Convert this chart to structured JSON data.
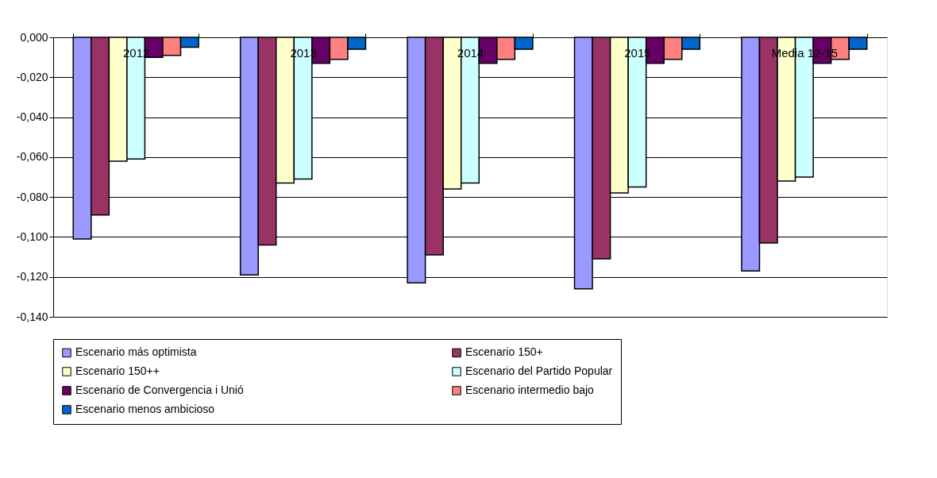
{
  "chart_data": {
    "type": "bar",
    "categories": [
      "2012",
      "2013",
      "2014",
      "2015",
      "Media 12-15"
    ],
    "series": [
      {
        "name": "Escenario más optimista",
        "color": "#9999ff",
        "values": [
          -0.101,
          -0.119,
          -0.123,
          -0.126,
          -0.117
        ]
      },
      {
        "name": "Escenario 150+",
        "color": "#993366",
        "values": [
          -0.089,
          -0.104,
          -0.109,
          -0.111,
          -0.103
        ]
      },
      {
        "name": "Escenario 150++",
        "color": "#ffffcc",
        "values": [
          -0.062,
          -0.073,
          -0.076,
          -0.078,
          -0.072
        ]
      },
      {
        "name": "Escenario del Partido Popular",
        "color": "#ccffff",
        "values": [
          -0.061,
          -0.071,
          -0.073,
          -0.075,
          -0.07
        ]
      },
      {
        "name": "Escenario de Convergencia i Unió",
        "color": "#660066",
        "values": [
          -0.01,
          -0.013,
          -0.013,
          -0.013,
          -0.013
        ]
      },
      {
        "name": "Escenario intermedio bajo",
        "color": "#ff8080",
        "values": [
          -0.009,
          -0.011,
          -0.011,
          -0.011,
          -0.011
        ]
      },
      {
        "name": "Escenario menos ambicioso",
        "color": "#0066cc",
        "values": [
          -0.005,
          -0.006,
          -0.006,
          -0.006,
          -0.006
        ]
      }
    ],
    "ylim": [
      -0.14,
      0
    ],
    "yticks": [
      {
        "value": 0,
        "label": "0,000"
      },
      {
        "value": -0.02,
        "label": "-0,020"
      },
      {
        "value": -0.04,
        "label": "-0,040"
      },
      {
        "value": -0.06,
        "label": "-0,060"
      },
      {
        "value": -0.08,
        "label": "-0,080"
      },
      {
        "value": -0.1,
        "label": "-0,100"
      },
      {
        "value": -0.12,
        "label": "-0,120"
      },
      {
        "value": -0.14,
        "label": "-0,140"
      }
    ],
    "grid": "y",
    "legend": "bottom"
  }
}
